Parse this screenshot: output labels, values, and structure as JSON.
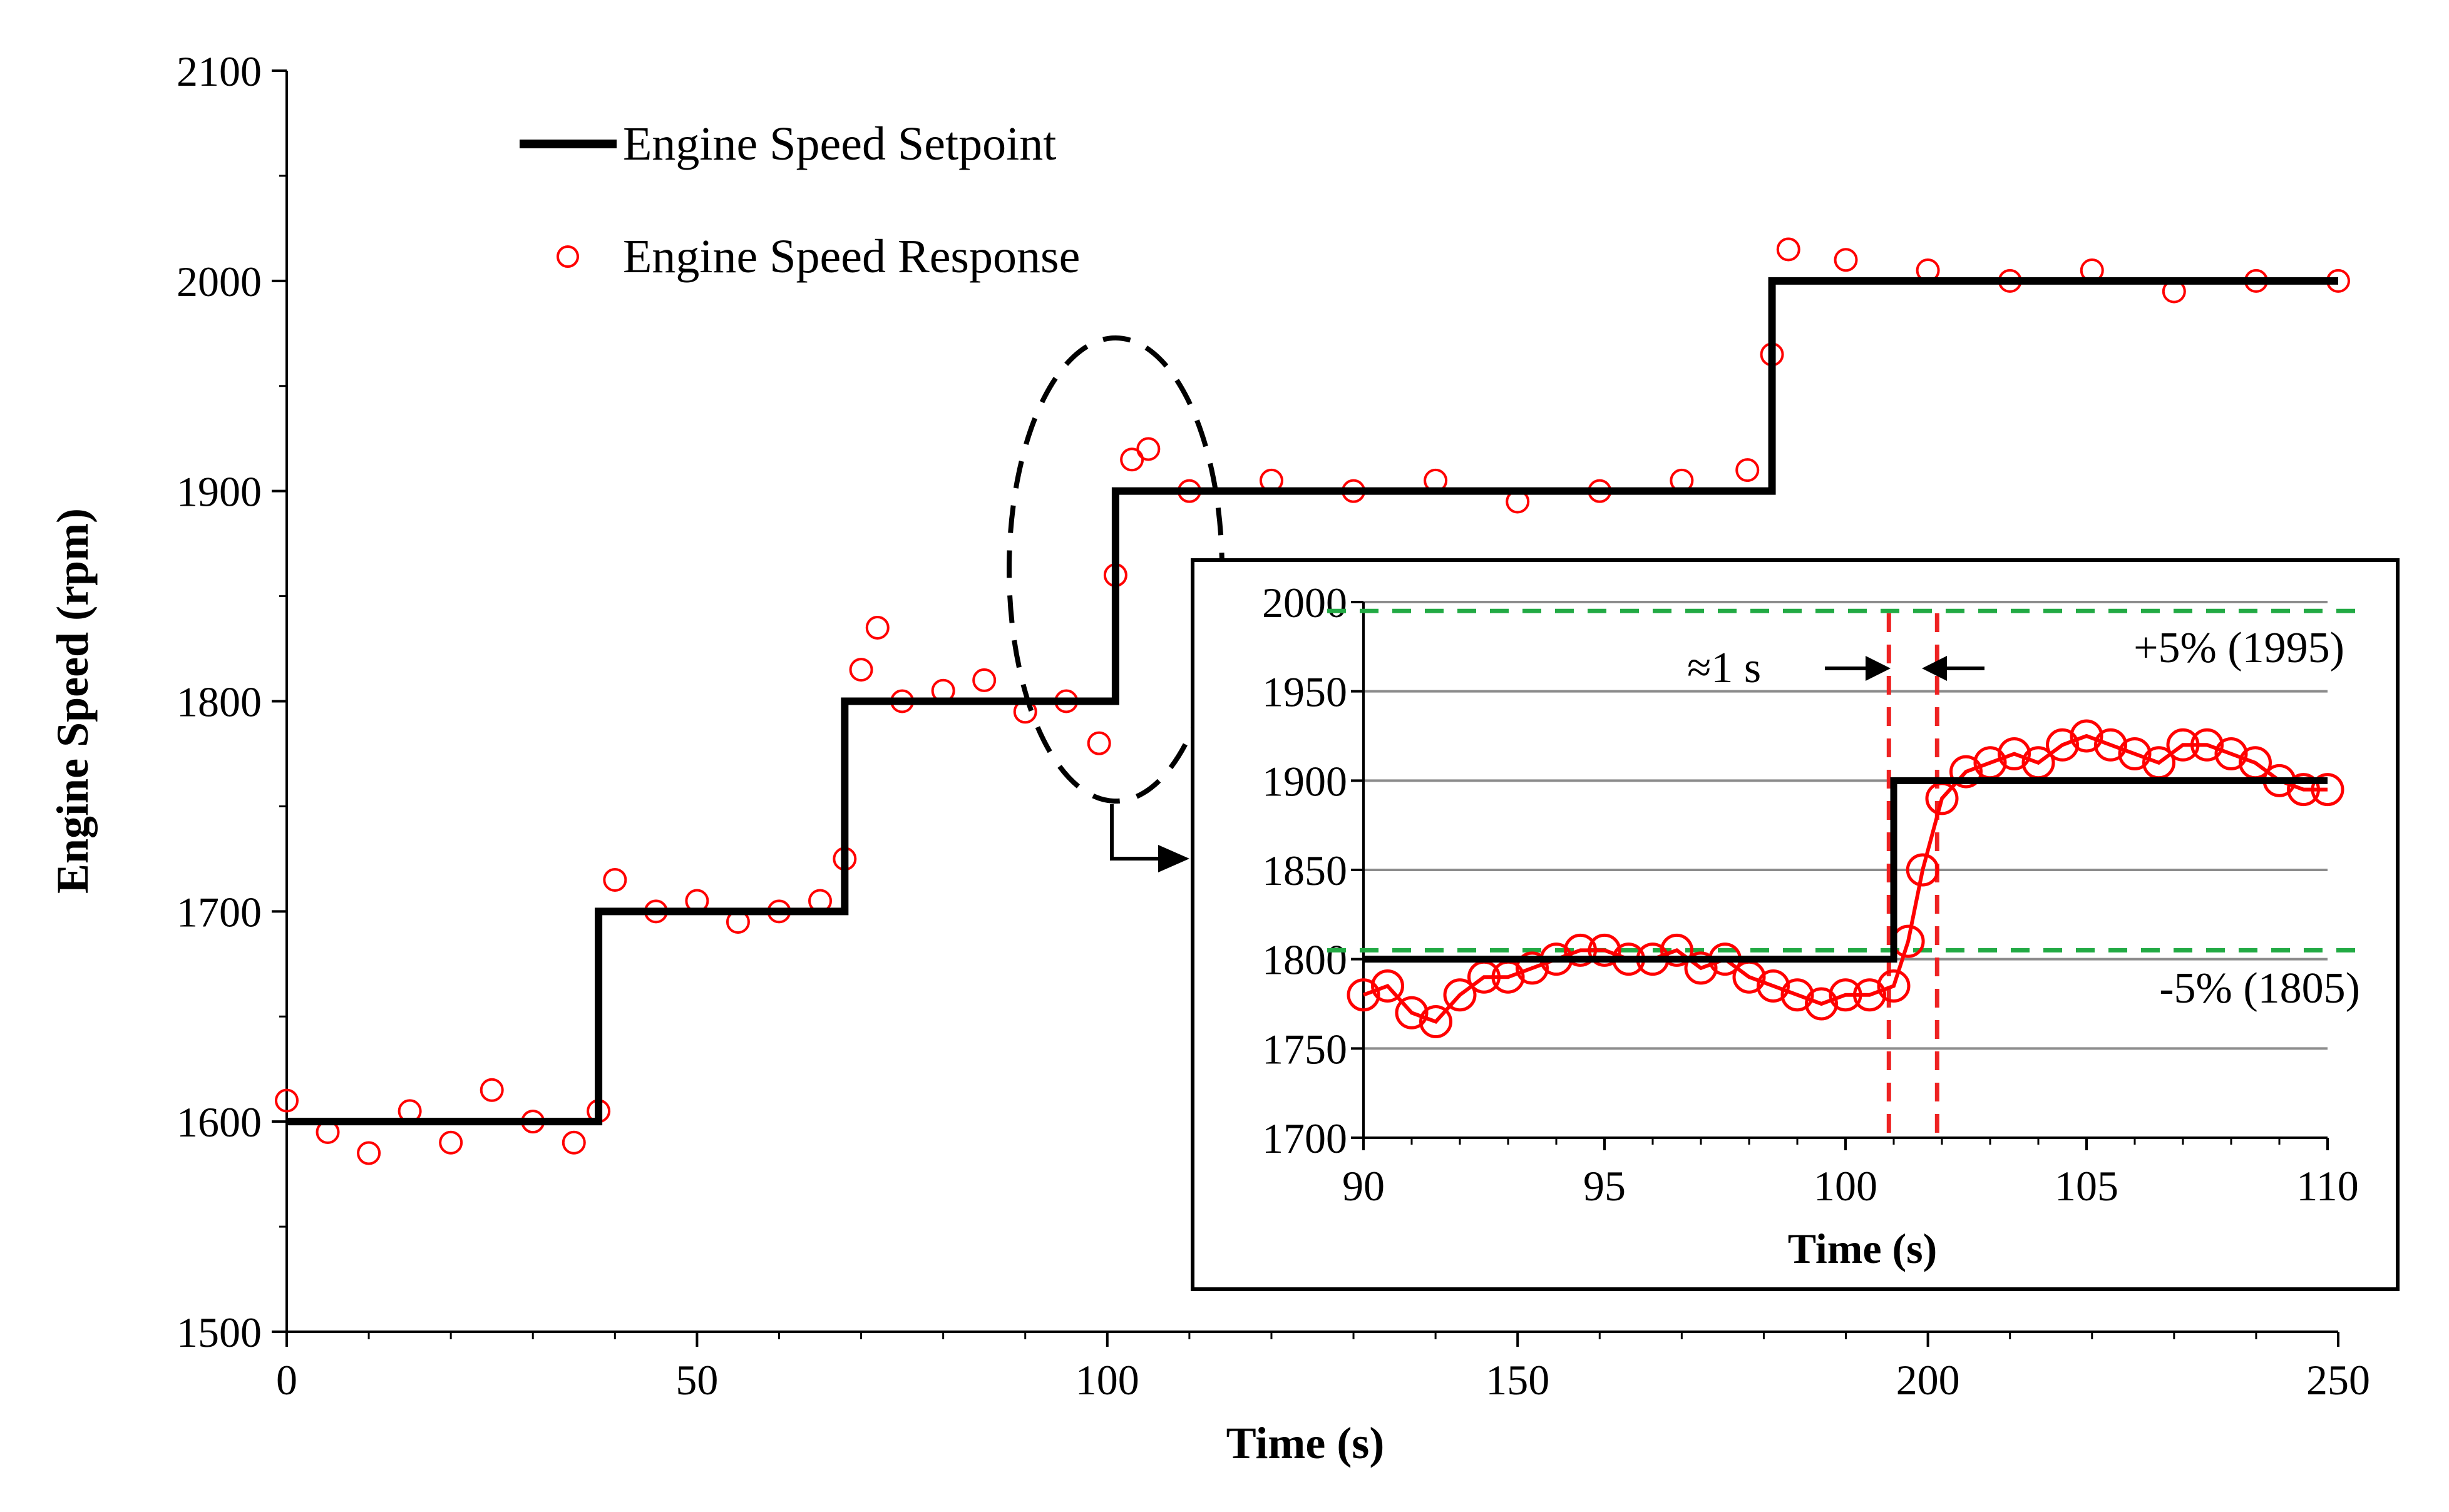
{
  "chart_data": [
    {
      "type": "line",
      "title": "",
      "xlabel": "Time (s)",
      "ylabel": "Engine Speed (rpm)",
      "xlim": [
        0,
        250
      ],
      "ylim": [
        1500,
        2100
      ],
      "xticks": [
        0,
        50,
        100,
        150,
        200,
        250
      ],
      "yticks": [
        1500,
        1600,
        1700,
        1800,
        1900,
        2000,
        2100
      ],
      "grid": false,
      "legend": "top-left",
      "series": [
        {
          "name": "Engine Speed Setpoint",
          "kind": "step-line",
          "color": "#000000",
          "x": [
            0,
            38,
            38,
            68,
            68,
            101,
            101,
            181,
            181,
            250
          ],
          "y": [
            1600,
            1600,
            1700,
            1700,
            1800,
            1800,
            1900,
            1900,
            2000,
            2000
          ]
        },
        {
          "name": "Engine Speed Response",
          "kind": "scatter",
          "marker": "open-circle",
          "color": "#ff0000",
          "x": [
            0,
            5,
            10,
            15,
            20,
            25,
            30,
            35,
            38,
            40,
            45,
            50,
            55,
            60,
            65,
            68,
            70,
            72,
            75,
            80,
            85,
            90,
            95,
            99,
            101,
            103,
            105,
            110,
            120,
            130,
            140,
            150,
            160,
            170,
            178,
            181,
            183,
            190,
            200,
            210,
            220,
            230,
            240,
            250
          ],
          "y": [
            1610,
            1595,
            1585,
            1605,
            1590,
            1615,
            1600,
            1590,
            1605,
            1715,
            1700,
            1705,
            1695,
            1700,
            1705,
            1725,
            1815,
            1835,
            1800,
            1805,
            1810,
            1795,
            1800,
            1780,
            1860,
            1915,
            1920,
            1900,
            1905,
            1900,
            1905,
            1895,
            1900,
            1905,
            1910,
            1965,
            2015,
            2010,
            2005,
            2000,
            2005,
            1995,
            2000,
            2000
          ]
        }
      ],
      "annotations": [
        "dashed ellipse highlighting the 1800 to 1900 rpm step near 100 s, with an arrow pointing to the inset"
      ]
    },
    {
      "type": "line",
      "title": "",
      "xlabel": "Time (s)",
      "ylabel": "",
      "xlim": [
        90,
        110
      ],
      "ylim": [
        1700,
        2000
      ],
      "xticks": [
        90,
        95,
        100,
        105,
        110
      ],
      "yticks": [
        1700,
        1750,
        1800,
        1850,
        1900,
        1950,
        2000
      ],
      "grid": true,
      "series": [
        {
          "kind": "step-line",
          "color": "#000000",
          "x": [
            90,
            101,
            101,
            110
          ],
          "y": [
            1800,
            1800,
            1900,
            1900
          ]
        },
        {
          "kind": "scatter",
          "marker": "open-circle",
          "color": "#ff0000",
          "x": [
            90,
            90.5,
            91,
            91.5,
            92,
            92.5,
            93,
            93.5,
            94,
            94.5,
            95,
            95.5,
            96,
            96.5,
            97,
            97.5,
            98,
            98.5,
            99,
            99.5,
            100,
            100.5,
            101,
            101.3,
            101.6,
            102,
            102.5,
            103,
            103.5,
            104,
            104.5,
            105,
            105.5,
            106,
            106.5,
            107,
            107.5,
            108,
            108.5,
            109,
            109.5,
            110
          ],
          "y": [
            1780,
            1785,
            1770,
            1765,
            1780,
            1790,
            1790,
            1795,
            1800,
            1805,
            1805,
            1800,
            1800,
            1805,
            1795,
            1800,
            1790,
            1785,
            1780,
            1775,
            1780,
            1780,
            1785,
            1810,
            1850,
            1890,
            1905,
            1910,
            1915,
            1910,
            1920,
            1925,
            1920,
            1915,
            1910,
            1920,
            1920,
            1915,
            1910,
            1900,
            1895,
            1895
          ]
        }
      ],
      "reference_lines": [
        {
          "axis": "y",
          "value": 1995,
          "label": "+5% (1995)",
          "color": "#22aa44",
          "style": "dashed"
        },
        {
          "axis": "y",
          "value": 1805,
          "label": "-5% (1805)",
          "color": "#22aa44",
          "style": "dashed"
        },
        {
          "axis": "x",
          "value": 100.9,
          "color": "#ee2222",
          "style": "dashed"
        },
        {
          "axis": "x",
          "value": 101.9,
          "color": "#ee2222",
          "style": "dashed"
        }
      ],
      "annotations": [
        {
          "text": "≈1 s"
        }
      ]
    }
  ]
}
